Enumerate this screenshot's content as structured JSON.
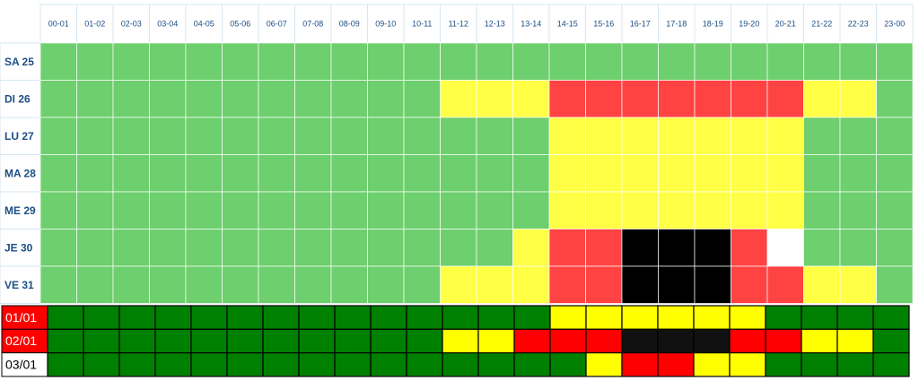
{
  "schedule": {
    "hours": [
      "00-01",
      "01-02",
      "02-03",
      "03-04",
      "04-05",
      "05-06",
      "06-07",
      "07-08",
      "08-09",
      "09-10",
      "10-11",
      "11-12",
      "12-13",
      "13-14",
      "14-15",
      "15-16",
      "16-17",
      "17-18",
      "18-19",
      "19-20",
      "20-21",
      "21-22",
      "22-23",
      "23-00"
    ],
    "days": [
      {
        "label": "SA 25",
        "cells": [
          "#6dcf6d",
          "#6dcf6d",
          "#6dcf6d",
          "#6dcf6d",
          "#6dcf6d",
          "#6dcf6d",
          "#6dcf6d",
          "#6dcf6d",
          "#6dcf6d",
          "#6dcf6d",
          "#6dcf6d",
          "#6dcf6d",
          "#6dcf6d",
          "#6dcf6d",
          "#6dcf6d",
          "#6dcf6d",
          "#6dcf6d",
          "#6dcf6d",
          "#6dcf6d",
          "#6dcf6d",
          "#6dcf6d",
          "#6dcf6d",
          "#6dcf6d",
          "#6dcf6d"
        ]
      },
      {
        "label": "DI 26",
        "cells": [
          "#6dcf6d",
          "#6dcf6d",
          "#6dcf6d",
          "#6dcf6d",
          "#6dcf6d",
          "#6dcf6d",
          "#6dcf6d",
          "#6dcf6d",
          "#6dcf6d",
          "#6dcf6d",
          "#6dcf6d",
          "#ffff46",
          "#ffff46",
          "#ffff46",
          "#ff4343",
          "#ff4343",
          "#ff4343",
          "#ff4343",
          "#ff4343",
          "#ff4343",
          "#ff4343",
          "#ffff46",
          "#ffff46",
          "#6dcf6d"
        ]
      },
      {
        "label": "LU 27",
        "cells": [
          "#6dcf6d",
          "#6dcf6d",
          "#6dcf6d",
          "#6dcf6d",
          "#6dcf6d",
          "#6dcf6d",
          "#6dcf6d",
          "#6dcf6d",
          "#6dcf6d",
          "#6dcf6d",
          "#6dcf6d",
          "#6dcf6d",
          "#6dcf6d",
          "#6dcf6d",
          "#ffff46",
          "#ffff46",
          "#ffff46",
          "#ffff46",
          "#ffff46",
          "#ffff46",
          "#ffff46",
          "#6dcf6d",
          "#6dcf6d",
          "#6dcf6d"
        ]
      },
      {
        "label": "MA 28",
        "cells": [
          "#6dcf6d",
          "#6dcf6d",
          "#6dcf6d",
          "#6dcf6d",
          "#6dcf6d",
          "#6dcf6d",
          "#6dcf6d",
          "#6dcf6d",
          "#6dcf6d",
          "#6dcf6d",
          "#6dcf6d",
          "#6dcf6d",
          "#6dcf6d",
          "#6dcf6d",
          "#ffff46",
          "#ffff46",
          "#ffff46",
          "#ffff46",
          "#ffff46",
          "#ffff46",
          "#ffff46",
          "#6dcf6d",
          "#6dcf6d",
          "#6dcf6d"
        ]
      },
      {
        "label": "ME 29",
        "cells": [
          "#6dcf6d",
          "#6dcf6d",
          "#6dcf6d",
          "#6dcf6d",
          "#6dcf6d",
          "#6dcf6d",
          "#6dcf6d",
          "#6dcf6d",
          "#6dcf6d",
          "#6dcf6d",
          "#6dcf6d",
          "#6dcf6d",
          "#6dcf6d",
          "#6dcf6d",
          "#ffff46",
          "#ffff46",
          "#ffff46",
          "#ffff46",
          "#ffff46",
          "#ffff46",
          "#ffff46",
          "#6dcf6d",
          "#6dcf6d",
          "#6dcf6d"
        ]
      },
      {
        "label": "JE 30",
        "cells": [
          "#6dcf6d",
          "#6dcf6d",
          "#6dcf6d",
          "#6dcf6d",
          "#6dcf6d",
          "#6dcf6d",
          "#6dcf6d",
          "#6dcf6d",
          "#6dcf6d",
          "#6dcf6d",
          "#6dcf6d",
          "#6dcf6d",
          "#6dcf6d",
          "#ffff46",
          "#ff4343",
          "#ff4343",
          "#000000",
          "#000000",
          "#000000",
          "#ff4343",
          "#ffffff",
          "#6dcf6d",
          "#6dcf6d",
          "#6dcf6d"
        ]
      },
      {
        "label": "VE 31",
        "cells": [
          "#6dcf6d",
          "#6dcf6d",
          "#6dcf6d",
          "#6dcf6d",
          "#6dcf6d",
          "#6dcf6d",
          "#6dcf6d",
          "#6dcf6d",
          "#6dcf6d",
          "#6dcf6d",
          "#6dcf6d",
          "#ffff46",
          "#ffff46",
          "#ffff46",
          "#ff4343",
          "#ff4343",
          "#000000",
          "#000000",
          "#000000",
          "#ff4343",
          "#ff4343",
          "#ffff46",
          "#ffff46",
          "#6dcf6d"
        ]
      }
    ],
    "dates": [
      {
        "label": "01/01",
        "label_background": "#ff0000",
        "label_text_color": "#ffffff",
        "cells": [
          "#008000",
          "#008000",
          "#008000",
          "#008000",
          "#008000",
          "#008000",
          "#008000",
          "#008000",
          "#008000",
          "#008000",
          "#008000",
          "#008000",
          "#008000",
          "#008000",
          "#ffff00",
          "#ffff00",
          "#ffff00",
          "#ffff00",
          "#ffff00",
          "#ffff00",
          "#008000",
          "#008000",
          "#008000",
          "#008000"
        ]
      },
      {
        "label": "02/01",
        "label_background": "#ff0000",
        "label_text_color": "#ffffff",
        "cells": [
          "#008000",
          "#008000",
          "#008000",
          "#008000",
          "#008000",
          "#008000",
          "#008000",
          "#008000",
          "#008000",
          "#008000",
          "#008000",
          "#ffff00",
          "#ffff00",
          "#ff0000",
          "#ff0000",
          "#ff0000",
          "#111111",
          "#111111",
          "#111111",
          "#ff0000",
          "#ff0000",
          "#ffff00",
          "#ffff00",
          "#008000"
        ]
      },
      {
        "label": "03/01",
        "label_background": "#ffffff",
        "label_text_color": "#000000",
        "cells": [
          "#008000",
          "#008000",
          "#008000",
          "#008000",
          "#008000",
          "#008000",
          "#008000",
          "#008000",
          "#008000",
          "#008000",
          "#008000",
          "#008000",
          "#008000",
          "#008000",
          "#008000",
          "#ffff00",
          "#ff0000",
          "#ff0000",
          "#ffff00",
          "#ffff00",
          "#008000",
          "#008000",
          "#008000",
          "#008000"
        ]
      }
    ]
  }
}
